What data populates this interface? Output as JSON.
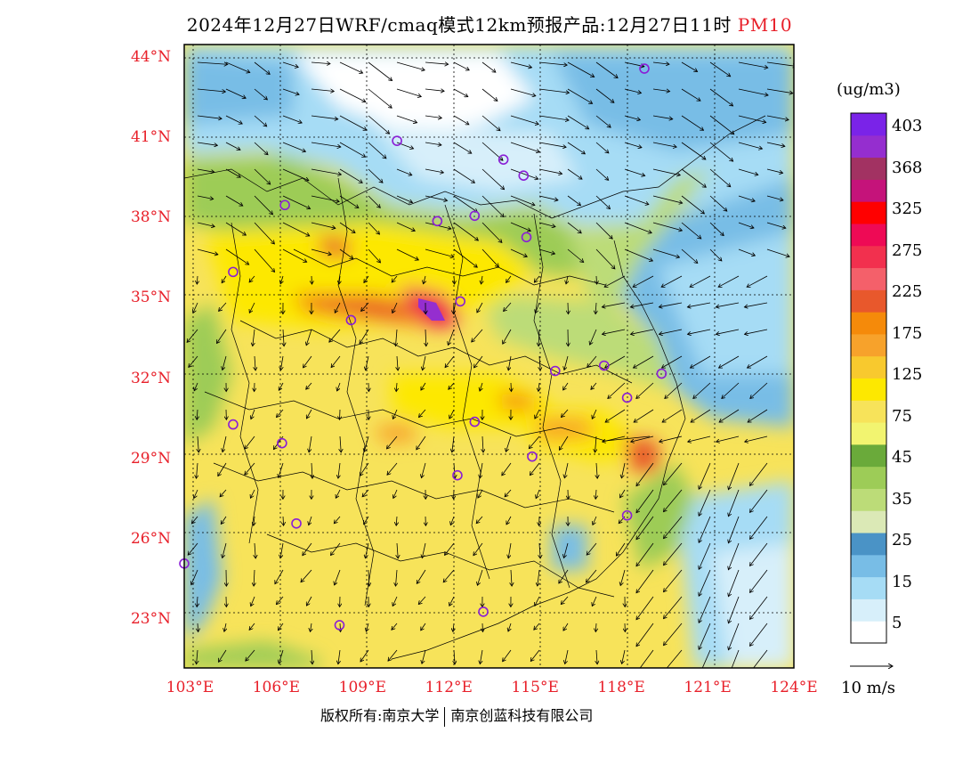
{
  "title": {
    "prefix": "2024年12月27日WRF/cmaq模式12km预报产品:12月27日11时",
    "pollutant": "PM10"
  },
  "axes": {
    "lat_labels": [
      "44°N",
      "41°N",
      "38°N",
      "35°N",
      "32°N",
      "29°N",
      "26°N",
      "23°N"
    ],
    "lon_labels": [
      "103°E",
      "106°E",
      "109°E",
      "112°E",
      "115°E",
      "118°E",
      "121°E",
      "124°E"
    ],
    "lat_values": [
      44,
      41,
      38,
      35,
      32,
      29,
      26,
      23
    ],
    "lon_values": [
      103,
      106,
      109,
      112,
      115,
      118,
      121,
      124
    ],
    "lon_range": [
      102.8,
      124
    ],
    "lat_range": [
      21.2,
      44.5
    ]
  },
  "colorbar": {
    "unit": "(ug/m3)",
    "labels": [
      "403",
      "368",
      "325",
      "275",
      "225",
      "175",
      "125",
      "75",
      "45",
      "35",
      "25",
      "15",
      "5"
    ],
    "colors": [
      "#ffffff",
      "#d7effa",
      "#a6dcf5",
      "#78bde6",
      "#4a93c6",
      "#dbe9b6",
      "#bcdc78",
      "#9dcc57",
      "#6aaa3a",
      "#f2f470",
      "#f7e35a",
      "#fde800",
      "#f8c92e",
      "#f7a22b",
      "#f58a0a",
      "#e8582c",
      "#f4606a",
      "#f2304e",
      "#ee0a55",
      "#ff0000",
      "#c5137a",
      "#a23262",
      "#952ecf",
      "#7a23e8"
    ]
  },
  "wind_reference": {
    "label": "10 m/s"
  },
  "cities": [
    {
      "lon": 118.8,
      "lat": 43.6
    },
    {
      "lon": 110.2,
      "lat": 40.9
    },
    {
      "lon": 113.9,
      "lat": 40.2
    },
    {
      "lon": 114.6,
      "lat": 39.6
    },
    {
      "lon": 106.3,
      "lat": 38.5
    },
    {
      "lon": 111.6,
      "lat": 37.9
    },
    {
      "lon": 112.9,
      "lat": 38.1
    },
    {
      "lon": 114.7,
      "lat": 37.3
    },
    {
      "lon": 104.5,
      "lat": 36.0
    },
    {
      "lon": 112.4,
      "lat": 34.9
    },
    {
      "lon": 108.6,
      "lat": 34.2
    },
    {
      "lon": 115.7,
      "lat": 32.3
    },
    {
      "lon": 117.4,
      "lat": 32.5
    },
    {
      "lon": 119.4,
      "lat": 32.2
    },
    {
      "lon": 118.2,
      "lat": 31.3
    },
    {
      "lon": 112.9,
      "lat": 30.4
    },
    {
      "lon": 104.5,
      "lat": 30.3
    },
    {
      "lon": 106.2,
      "lat": 29.6
    },
    {
      "lon": 114.9,
      "lat": 29.1
    },
    {
      "lon": 112.3,
      "lat": 28.4
    },
    {
      "lon": 106.7,
      "lat": 26.6
    },
    {
      "lon": 118.2,
      "lat": 26.9
    },
    {
      "lon": 102.8,
      "lat": 25.1
    },
    {
      "lon": 113.2,
      "lat": 23.3
    },
    {
      "lon": 108.2,
      "lat": 22.8
    }
  ],
  "copyright": {
    "left": "版权所有:南京大学",
    "right": "南京创蓝科技有限公司"
  }
}
